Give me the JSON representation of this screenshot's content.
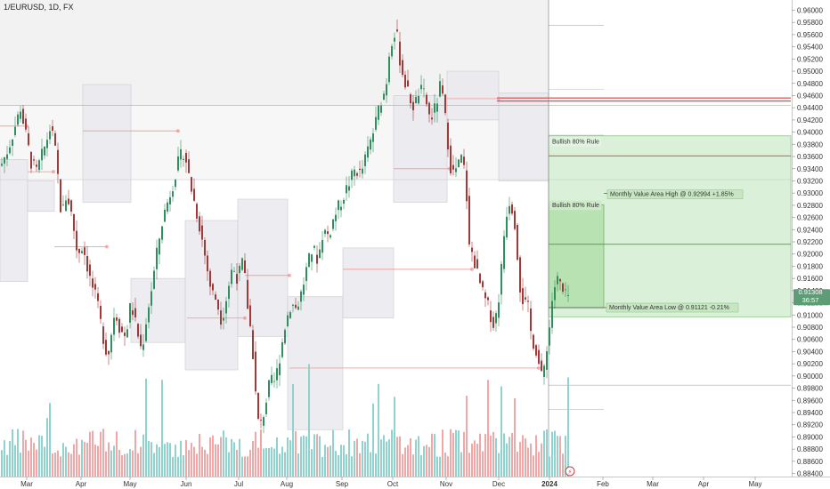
{
  "chart_data": {
    "type": "candlestick",
    "title": "1/EURUSD, 1D, FX",
    "x_labels": [
      "Mar",
      "Apr",
      "May",
      "Jun",
      "Jul",
      "Aug",
      "Sep",
      "Oct",
      "Nov",
      "Dec",
      "2024",
      "Feb",
      "Mar",
      "Apr",
      "May"
    ],
    "y_labels": [
      "0.96000",
      "0.95800",
      "0.95600",
      "0.95400",
      "0.95200",
      "0.95000",
      "0.94800",
      "0.94600",
      "0.94400",
      "0.94200",
      "0.94000",
      "0.93800",
      "0.93600",
      "0.93400",
      "0.93200",
      "0.93000",
      "0.92800",
      "0.92600",
      "0.92400",
      "0.92200",
      "0.92000",
      "0.91800",
      "0.91600",
      "0.91400",
      "0.91200",
      "0.91000",
      "0.90800",
      "0.90600",
      "0.90400",
      "0.90200",
      "0.90000",
      "0.89800",
      "0.89600",
      "0.89400",
      "0.89200",
      "0.89000",
      "0.88800",
      "0.88600",
      "0.88400"
    ],
    "ylim": [
      0.8835,
      0.9608
    ],
    "current_price": "0.91308",
    "countdown": "36:57",
    "annotations": {
      "bullish_rule_upper": "Bullish 80% Rule",
      "bullish_rule_lower": "Bullish 80% Rule",
      "value_area_high": "Monthly Value Area High @ 0.92994 +1.85%",
      "value_area_low": "Monthly Value Area Low @ 0.91121 -0.21%"
    },
    "levels": {
      "value_area_high": 0.92994,
      "value_area_low": 0.91121,
      "red_line_1": 0.9456,
      "red_line_2": 0.9451,
      "red_line_3": 0.9361
    },
    "path_points": [
      [
        0,
        0.9345
      ],
      [
        8,
        0.9372
      ],
      [
        16,
        0.941
      ],
      [
        22,
        0.944
      ],
      [
        28,
        0.9395
      ],
      [
        34,
        0.935
      ],
      [
        40,
        0.9335
      ],
      [
        48,
        0.937
      ],
      [
        56,
        0.941
      ],
      [
        62,
        0.936
      ],
      [
        68,
        0.926
      ],
      [
        74,
        0.93
      ],
      [
        80,
        0.926
      ],
      [
        86,
        0.92
      ],
      [
        92,
        0.9215
      ],
      [
        100,
        0.916
      ],
      [
        108,
        0.912
      ],
      [
        114,
        0.907
      ],
      [
        120,
        0.903
      ],
      [
        128,
        0.911
      ],
      [
        134,
        0.9075
      ],
      [
        140,
        0.9065
      ],
      [
        146,
        0.912
      ],
      [
        152,
        0.908
      ],
      [
        158,
        0.904
      ],
      [
        164,
        0.91
      ],
      [
        170,
        0.915
      ],
      [
        176,
        0.921
      ],
      [
        182,
        0.926
      ],
      [
        188,
        0.929
      ],
      [
        194,
        0.932
      ],
      [
        200,
        0.9355
      ],
      [
        206,
        0.937
      ],
      [
        212,
        0.932
      ],
      [
        218,
        0.928
      ],
      [
        224,
        0.924
      ],
      [
        230,
        0.919
      ],
      [
        236,
        0.914
      ],
      [
        242,
        0.9125
      ],
      [
        248,
        0.909
      ],
      [
        254,
        0.9135
      ],
      [
        260,
        0.918
      ],
      [
        266,
        0.916
      ],
      [
        272,
        0.919
      ],
      [
        278,
        0.91
      ],
      [
        282,
        0.906
      ],
      [
        286,
        0.897
      ],
      [
        290,
        0.891
      ],
      [
        296,
        0.8945
      ],
      [
        302,
        0.899
      ],
      [
        308,
        0.899
      ],
      [
        314,
        0.904
      ],
      [
        320,
        0.909
      ],
      [
        326,
        0.912
      ],
      [
        332,
        0.911
      ],
      [
        338,
        0.914
      ],
      [
        344,
        0.918
      ],
      [
        350,
        0.921
      ],
      [
        356,
        0.919
      ],
      [
        362,
        0.924
      ],
      [
        368,
        0.923
      ],
      [
        374,
        0.926
      ],
      [
        380,
        0.928
      ],
      [
        386,
        0.93
      ],
      [
        392,
        0.932
      ],
      [
        398,
        0.934
      ],
      [
        404,
        0.933
      ],
      [
        410,
        0.936
      ],
      [
        416,
        0.939
      ],
      [
        420,
        0.941
      ],
      [
        426,
        0.945
      ],
      [
        432,
        0.947
      ],
      [
        436,
        0.953
      ],
      [
        440,
        0.956
      ],
      [
        444,
        0.9565
      ],
      [
        448,
        0.952
      ],
      [
        452,
        0.949
      ],
      [
        458,
        0.946
      ],
      [
        464,
        0.944
      ],
      [
        470,
        0.947
      ],
      [
        476,
        0.946
      ],
      [
        482,
        0.942
      ],
      [
        488,
        0.944
      ],
      [
        494,
        0.948
      ],
      [
        500,
        0.941
      ],
      [
        506,
        0.933
      ],
      [
        512,
        0.934
      ],
      [
        518,
        0.936
      ],
      [
        522,
        0.932
      ],
      [
        526,
        0.921
      ],
      [
        530,
        0.92
      ],
      [
        536,
        0.916
      ],
      [
        542,
        0.913
      ],
      [
        548,
        0.911
      ],
      [
        554,
        0.908
      ],
      [
        560,
        0.914
      ],
      [
        566,
        0.925
      ],
      [
        570,
        0.929
      ],
      [
        576,
        0.927
      ],
      [
        580,
        0.92
      ],
      [
        584,
        0.913
      ],
      [
        588,
        0.912
      ],
      [
        592,
        0.911
      ],
      [
        596,
        0.906
      ],
      [
        600,
        0.905
      ],
      [
        604,
        0.902
      ],
      [
        608,
        0.899
      ],
      [
        612,
        0.904
      ],
      [
        616,
        0.908
      ],
      [
        620,
        0.914
      ],
      [
        626,
        0.916
      ],
      [
        632,
        0.913
      ],
      [
        638,
        0.9131
      ]
    ]
  }
}
